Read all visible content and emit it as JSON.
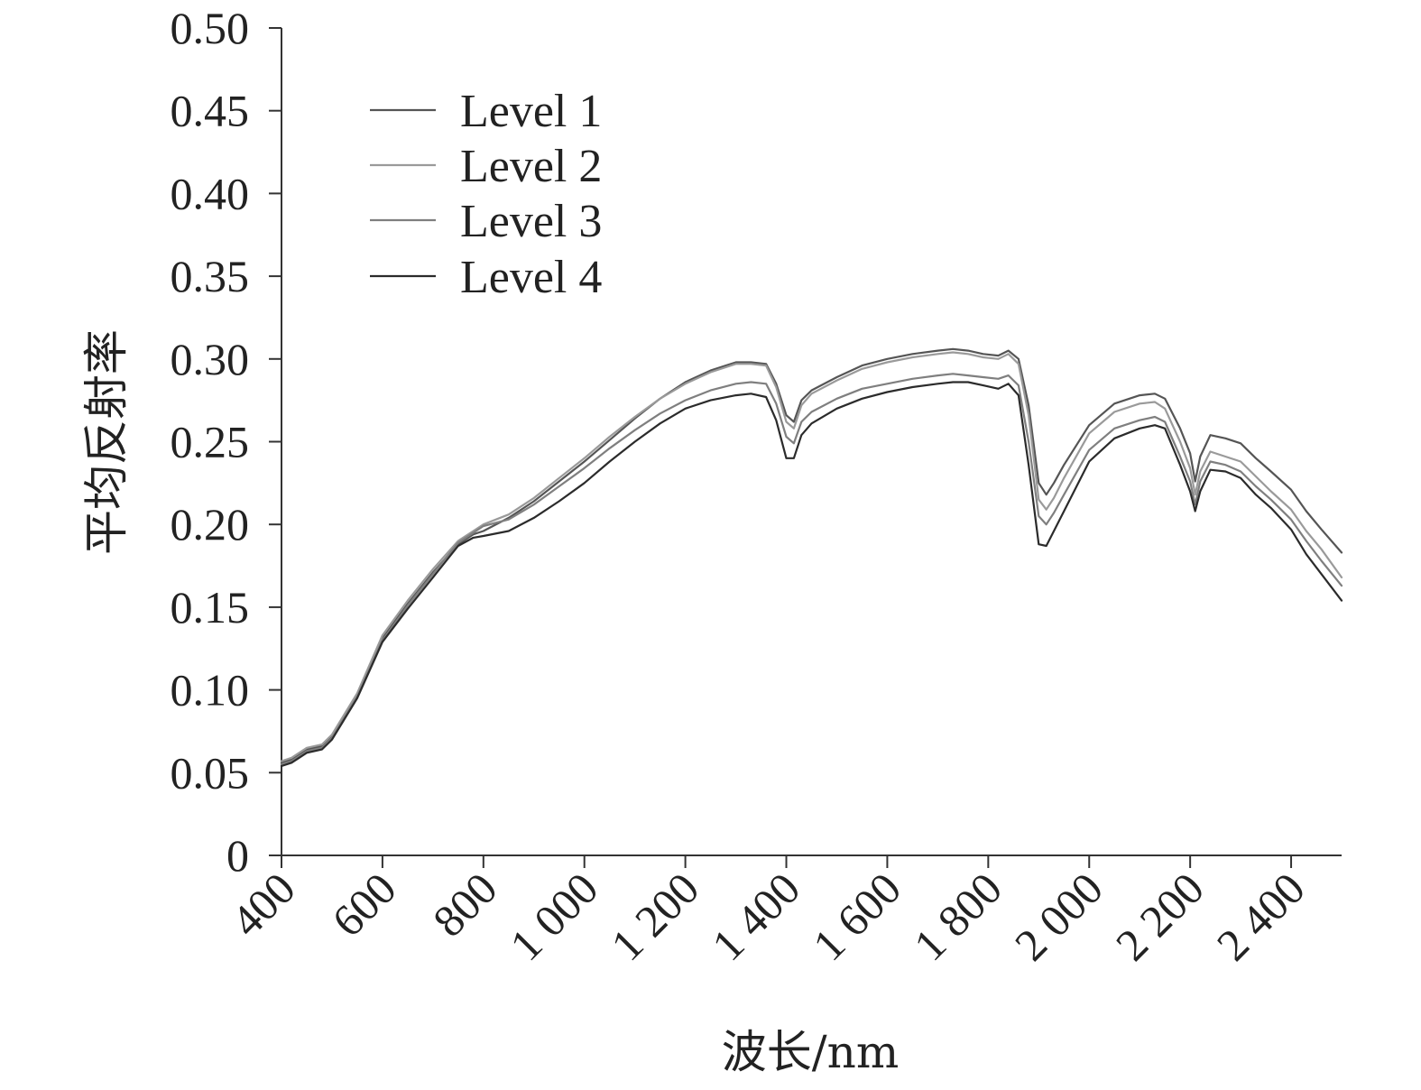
{
  "chart_data": {
    "type": "line",
    "title": "",
    "xlabel": "波长/nm",
    "ylabel": "平均反射率",
    "xlim": [
      400,
      2500
    ],
    "ylim": [
      0,
      0.5
    ],
    "grid": false,
    "legend_position": "top-left",
    "x_ticks": [
      400,
      600,
      800,
      1000,
      1200,
      1400,
      1600,
      1800,
      2000,
      2200,
      2400
    ],
    "x_tick_labels": [
      "400",
      "600",
      "800",
      "1 000",
      "1 200",
      "1 400",
      "1 600",
      "1 800",
      "2 000",
      "2 200",
      "2 400"
    ],
    "y_ticks": [
      0,
      0.05,
      0.1,
      0.15,
      0.2,
      0.25,
      0.3,
      0.35,
      0.4,
      0.45,
      0.5
    ],
    "y_tick_labels": [
      "0",
      "0.05",
      "0.10",
      "0.15",
      "0.20",
      "0.25",
      "0.30",
      "0.35",
      "0.40",
      "0.45",
      "0.50"
    ],
    "x": [
      400,
      420,
      450,
      480,
      500,
      550,
      600,
      650,
      700,
      750,
      780,
      800,
      850,
      900,
      950,
      1000,
      1050,
      1100,
      1150,
      1200,
      1250,
      1300,
      1330,
      1360,
      1380,
      1400,
      1415,
      1430,
      1450,
      1500,
      1550,
      1600,
      1650,
      1700,
      1730,
      1760,
      1790,
      1820,
      1840,
      1860,
      1880,
      1900,
      1915,
      1930,
      1950,
      2000,
      2050,
      2100,
      2130,
      2150,
      2180,
      2200,
      2210,
      2220,
      2240,
      2270,
      2300,
      2330,
      2360,
      2400,
      2430,
      2460,
      2500
    ],
    "series": [
      {
        "name": "Level 1",
        "color": "#555555",
        "values": [
          0.056,
          0.058,
          0.064,
          0.066,
          0.072,
          0.097,
          0.131,
          0.152,
          0.171,
          0.188,
          0.194,
          0.196,
          0.204,
          0.214,
          0.226,
          0.238,
          0.251,
          0.264,
          0.276,
          0.286,
          0.293,
          0.298,
          0.298,
          0.297,
          0.285,
          0.266,
          0.262,
          0.275,
          0.281,
          0.289,
          0.296,
          0.3,
          0.303,
          0.305,
          0.306,
          0.305,
          0.303,
          0.302,
          0.305,
          0.3,
          0.272,
          0.225,
          0.218,
          0.225,
          0.236,
          0.26,
          0.273,
          0.278,
          0.279,
          0.276,
          0.258,
          0.243,
          0.226,
          0.241,
          0.254,
          0.252,
          0.249,
          0.24,
          0.232,
          0.221,
          0.208,
          0.197,
          0.183
        ]
      },
      {
        "name": "Level 2",
        "color": "#9a9a9a",
        "values": [
          0.057,
          0.059,
          0.065,
          0.067,
          0.073,
          0.098,
          0.133,
          0.154,
          0.173,
          0.19,
          0.196,
          0.2,
          0.206,
          0.216,
          0.228,
          0.24,
          0.253,
          0.265,
          0.276,
          0.285,
          0.292,
          0.297,
          0.297,
          0.296,
          0.283,
          0.262,
          0.258,
          0.272,
          0.279,
          0.287,
          0.294,
          0.298,
          0.301,
          0.303,
          0.304,
          0.303,
          0.301,
          0.3,
          0.303,
          0.297,
          0.266,
          0.215,
          0.209,
          0.216,
          0.228,
          0.255,
          0.268,
          0.273,
          0.274,
          0.27,
          0.25,
          0.234,
          0.218,
          0.232,
          0.244,
          0.241,
          0.238,
          0.229,
          0.22,
          0.209,
          0.196,
          0.185,
          0.168
        ]
      },
      {
        "name": "Level 3",
        "color": "#7f7f7f",
        "values": [
          0.055,
          0.057,
          0.063,
          0.065,
          0.071,
          0.096,
          0.13,
          0.151,
          0.17,
          0.189,
          0.195,
          0.199,
          0.203,
          0.212,
          0.223,
          0.234,
          0.246,
          0.257,
          0.267,
          0.275,
          0.281,
          0.285,
          0.286,
          0.285,
          0.273,
          0.253,
          0.249,
          0.262,
          0.268,
          0.276,
          0.282,
          0.285,
          0.288,
          0.29,
          0.291,
          0.29,
          0.289,
          0.288,
          0.29,
          0.284,
          0.25,
          0.205,
          0.2,
          0.207,
          0.218,
          0.245,
          0.258,
          0.263,
          0.265,
          0.262,
          0.241,
          0.226,
          0.212,
          0.226,
          0.238,
          0.236,
          0.232,
          0.223,
          0.215,
          0.203,
          0.19,
          0.178,
          0.163
        ]
      },
      {
        "name": "Level 4",
        "color": "#2b2b2b",
        "values": [
          0.054,
          0.056,
          0.062,
          0.064,
          0.07,
          0.095,
          0.129,
          0.149,
          0.168,
          0.187,
          0.192,
          0.193,
          0.196,
          0.204,
          0.214,
          0.225,
          0.238,
          0.25,
          0.261,
          0.27,
          0.275,
          0.278,
          0.279,
          0.277,
          0.263,
          0.24,
          0.24,
          0.254,
          0.261,
          0.27,
          0.276,
          0.28,
          0.283,
          0.285,
          0.286,
          0.286,
          0.284,
          0.282,
          0.285,
          0.278,
          0.236,
          0.188,
          0.187,
          0.196,
          0.208,
          0.238,
          0.252,
          0.258,
          0.26,
          0.258,
          0.236,
          0.22,
          0.208,
          0.22,
          0.233,
          0.232,
          0.228,
          0.218,
          0.21,
          0.197,
          0.182,
          0.17,
          0.154
        ]
      }
    ]
  }
}
